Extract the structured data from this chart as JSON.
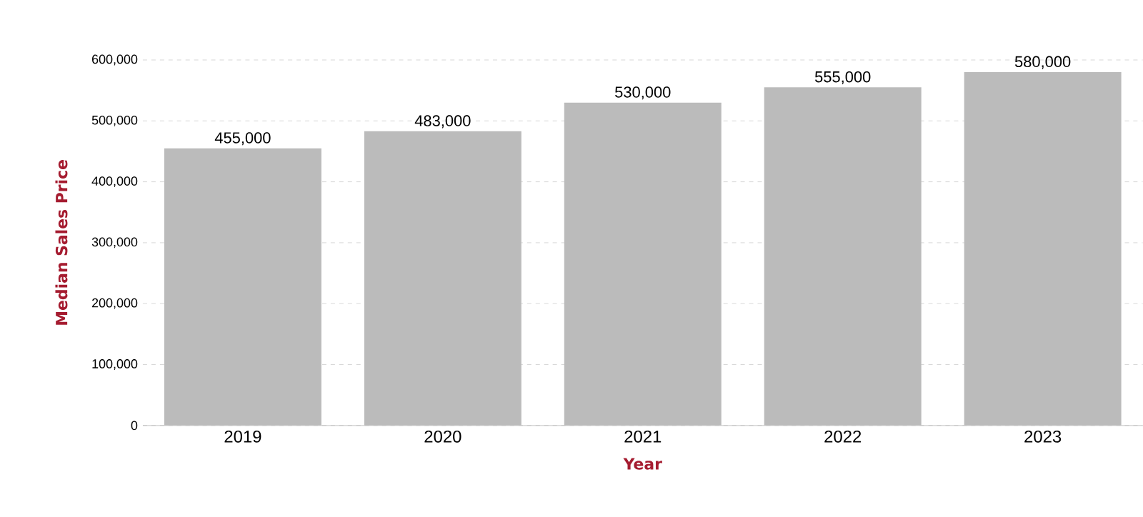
{
  "chart_data": {
    "type": "bar",
    "xlabel": "Year",
    "ylabel": "Median Sales Price",
    "categories": [
      "2019",
      "2020",
      "2021",
      "2022",
      "2023"
    ],
    "values": [
      455000,
      483000,
      530000,
      555000,
      580000
    ],
    "value_labels": [
      "455,000",
      "483,000",
      "530,000",
      "555,000",
      "580,000"
    ],
    "color": "#bbbbbb",
    "ylim": [
      0,
      600000
    ],
    "yticks": [
      0,
      {
        "value": 100000,
        "label": "100,000"
      },
      {
        "value": 200000,
        "label": "200,000"
      },
      {
        "value": 300000,
        "label": "300,000"
      },
      {
        "value": 400000,
        "label": "400,000"
      },
      {
        "value": 500000,
        "label": "500,000"
      },
      {
        "value": 600000,
        "label": "600,000"
      }
    ],
    "grid": "y"
  }
}
